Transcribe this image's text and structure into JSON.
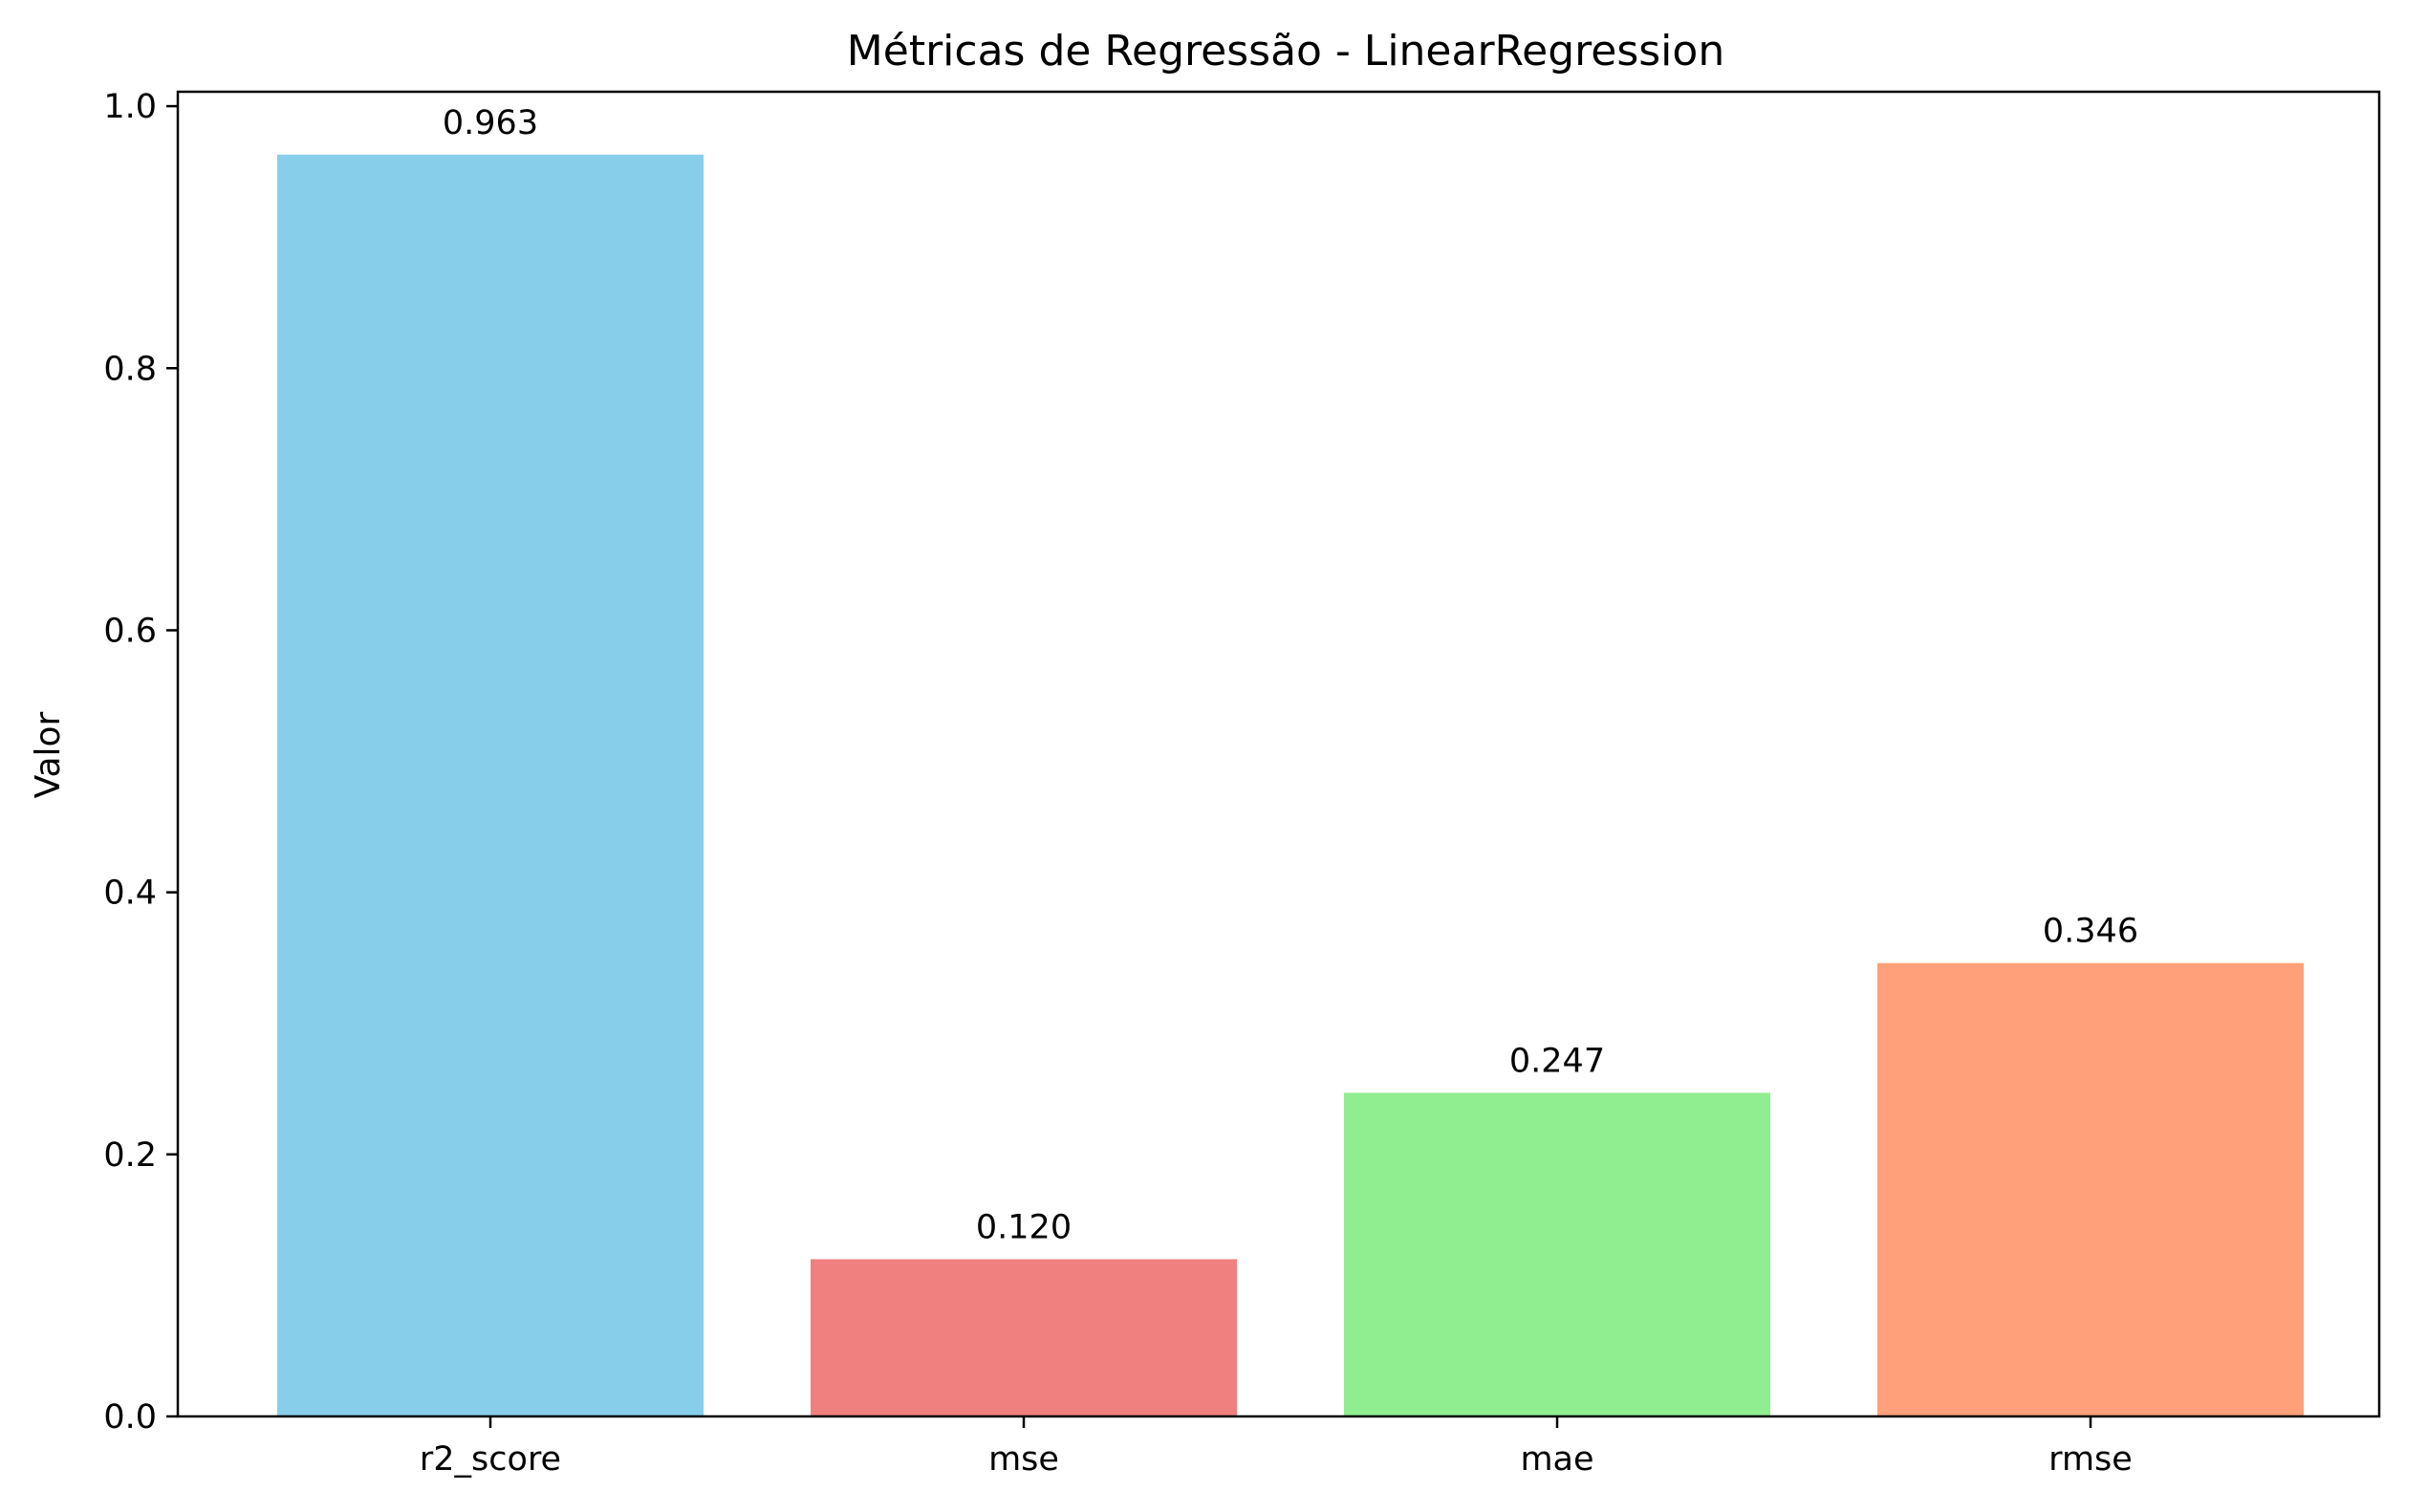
{
  "chart_data": {
    "type": "bar",
    "title": "Métricas de Regressão - LinearRegression",
    "xlabel": "",
    "ylabel": "Valor",
    "categories": [
      "r2_score",
      "mse",
      "mae",
      "rmse"
    ],
    "values": [
      0.963,
      0.12,
      0.247,
      0.346
    ],
    "value_labels": [
      "0.963",
      "0.120",
      "0.247",
      "0.346"
    ],
    "colors": [
      "#87CEEB",
      "#F08080",
      "#90EE90",
      "#FFA07A"
    ],
    "ylim": [
      0,
      1.011
    ],
    "yticks": [
      0.0,
      0.2,
      0.4,
      0.6,
      0.8,
      1.0
    ],
    "ytick_labels": [
      "0.0",
      "0.2",
      "0.4",
      "0.6",
      "0.8",
      "1.0"
    ],
    "grid": false,
    "legend": "none"
  }
}
